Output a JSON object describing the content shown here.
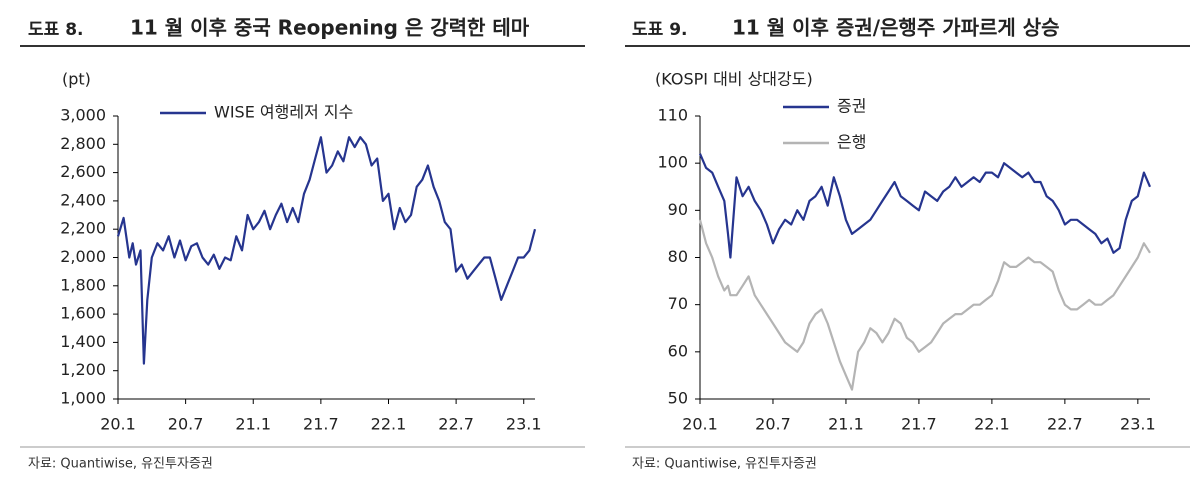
{
  "chart_data": [
    {
      "type": "line",
      "label": "도표 8.",
      "title": "11 월 이후 중국 Reopening 은 강력한 테마",
      "ylabel": "(pt)",
      "source": "자료: Quantiwise, 유진투자증권",
      "x": [
        0,
        0.5,
        1,
        1.3,
        1.6,
        2,
        2.3,
        2.6,
        3,
        3.5,
        4,
        4.5,
        5,
        5.5,
        6,
        6.5,
        7,
        7.5,
        8,
        8.5,
        9,
        9.5,
        10,
        10.5,
        11,
        11.5,
        12,
        12.5,
        13,
        13.5,
        14,
        14.5,
        15,
        15.5,
        16,
        16.5,
        17,
        17.5,
        18,
        18.5,
        19,
        19.5,
        20,
        20.5,
        21,
        21.5,
        22,
        22.5,
        23,
        23.5,
        24,
        24.5,
        25,
        25.5,
        26,
        26.5,
        27,
        27.5,
        28,
        28.5,
        29,
        29.5,
        30,
        30.5,
        31,
        31.5,
        32,
        32.5,
        33,
        33.5,
        34,
        34.5,
        35,
        35.5,
        36,
        36.5,
        37
      ],
      "series": [
        {
          "name": "WISE 여행레저 지수",
          "color": "#26358f",
          "values": [
            2150,
            2280,
            2000,
            2100,
            1950,
            2050,
            1250,
            1700,
            2000,
            2100,
            2050,
            2150,
            2000,
            2120,
            1980,
            2080,
            2100,
            2000,
            1950,
            2020,
            1920,
            2000,
            1980,
            2150,
            2050,
            2300,
            2200,
            2250,
            2330,
            2200,
            2300,
            2380,
            2250,
            2350,
            2250,
            2450,
            2550,
            2700,
            2850,
            2600,
            2650,
            2750,
            2680,
            2850,
            2780,
            2850,
            2800,
            2650,
            2700,
            2400,
            2450,
            2200,
            2350,
            2250,
            2300,
            2500,
            2550,
            2650,
            2500,
            2400,
            2250,
            2200,
            1900,
            1950,
            1850,
            1900,
            1950,
            2000,
            2000,
            1850,
            1700,
            1800,
            1900,
            2000,
            2000,
            2050,
            2200
          ]
        }
      ],
      "xlim": [
        0,
        37
      ],
      "xticks": [
        {
          "value": 0,
          "label": "20.1"
        },
        {
          "value": 6,
          "label": "20.7"
        },
        {
          "value": 12,
          "label": "21.1"
        },
        {
          "value": 18,
          "label": "21.7"
        },
        {
          "value": 24,
          "label": "22.1"
        },
        {
          "value": 30,
          "label": "22.7"
        },
        {
          "value": 36,
          "label": "23.1"
        }
      ],
      "ylim": [
        1000,
        3000
      ],
      "yticks": [
        {
          "value": 1000,
          "label": "1,000"
        },
        {
          "value": 1200,
          "label": "1,200"
        },
        {
          "value": 1400,
          "label": "1,400"
        },
        {
          "value": 1600,
          "label": "1,600"
        },
        {
          "value": 1800,
          "label": "1,800"
        },
        {
          "value": 2000,
          "label": "2,000"
        },
        {
          "value": 2200,
          "label": "2,200"
        },
        {
          "value": 2400,
          "label": "2,400"
        },
        {
          "value": 2600,
          "label": "2,600"
        },
        {
          "value": 2800,
          "label": "2,800"
        },
        {
          "value": 3000,
          "label": "3,000"
        }
      ]
    },
    {
      "type": "line",
      "label": "도표 9.",
      "title": "11 월 이후 증권/은행주 가파르게 상승",
      "ylabel": "(KOSPI 대비 상대강도)",
      "source": "자료: Quantiwise, 유진투자증권",
      "x": [
        0,
        0.5,
        1,
        1.5,
        2,
        2.3,
        2.5,
        3,
        3.5,
        4,
        4.5,
        5,
        5.5,
        6,
        6.5,
        7,
        7.5,
        8,
        8.5,
        9,
        9.5,
        10,
        10.5,
        11,
        11.5,
        12,
        12.5,
        13,
        13.5,
        14,
        14.5,
        15,
        15.5,
        16,
        16.5,
        17,
        17.5,
        18,
        18.5,
        19,
        19.5,
        20,
        20.5,
        21,
        21.5,
        22,
        22.5,
        23,
        23.5,
        24,
        24.5,
        25,
        25.5,
        26,
        26.5,
        27,
        27.5,
        28,
        28.5,
        29,
        29.5,
        30,
        30.5,
        31,
        31.5,
        32,
        32.5,
        33,
        33.5,
        34,
        34.5,
        35,
        35.5,
        36,
        36.5,
        37
      ],
      "series": [
        {
          "name": "증권",
          "color": "#26358f",
          "values": [
            102,
            99,
            98,
            95,
            92,
            85,
            80,
            97,
            93,
            95,
            92,
            90,
            87,
            83,
            86,
            88,
            87,
            90,
            88,
            92,
            93,
            95,
            91,
            97,
            93,
            88,
            85,
            86,
            87,
            88,
            90,
            92,
            94,
            96,
            93,
            92,
            91,
            90,
            94,
            93,
            92,
            94,
            95,
            97,
            95,
            96,
            97,
            96,
            98,
            98,
            97,
            100,
            99,
            98,
            97,
            98,
            96,
            96,
            93,
            92,
            90,
            87,
            88,
            88,
            87,
            86,
            85,
            83,
            84,
            81,
            82,
            88,
            92,
            93,
            98,
            95
          ]
        },
        {
          "name": "은행",
          "color": "#b4b4b4",
          "values": [
            88,
            83,
            80,
            76,
            73,
            74,
            72,
            72,
            74,
            76,
            72,
            70,
            68,
            66,
            64,
            62,
            61,
            60,
            62,
            66,
            68,
            69,
            66,
            62,
            58,
            55,
            52,
            60,
            62,
            65,
            64,
            62,
            64,
            67,
            66,
            63,
            62,
            60,
            61,
            62,
            64,
            66,
            67,
            68,
            68,
            69,
            70,
            70,
            71,
            72,
            75,
            79,
            78,
            78,
            79,
            80,
            79,
            79,
            78,
            77,
            73,
            70,
            69,
            69,
            70,
            71,
            70,
            70,
            71,
            72,
            74,
            76,
            78,
            80,
            83,
            81
          ]
        }
      ],
      "xlim": [
        0,
        37
      ],
      "xticks": [
        {
          "value": 0,
          "label": "20.1"
        },
        {
          "value": 6,
          "label": "20.7"
        },
        {
          "value": 12,
          "label": "21.1"
        },
        {
          "value": 18,
          "label": "21.7"
        },
        {
          "value": 24,
          "label": "22.1"
        },
        {
          "value": 30,
          "label": "22.7"
        },
        {
          "value": 36,
          "label": "23.1"
        }
      ],
      "ylim": [
        50,
        110
      ],
      "yticks": [
        50,
        60,
        70,
        80,
        90,
        100,
        110
      ]
    }
  ]
}
